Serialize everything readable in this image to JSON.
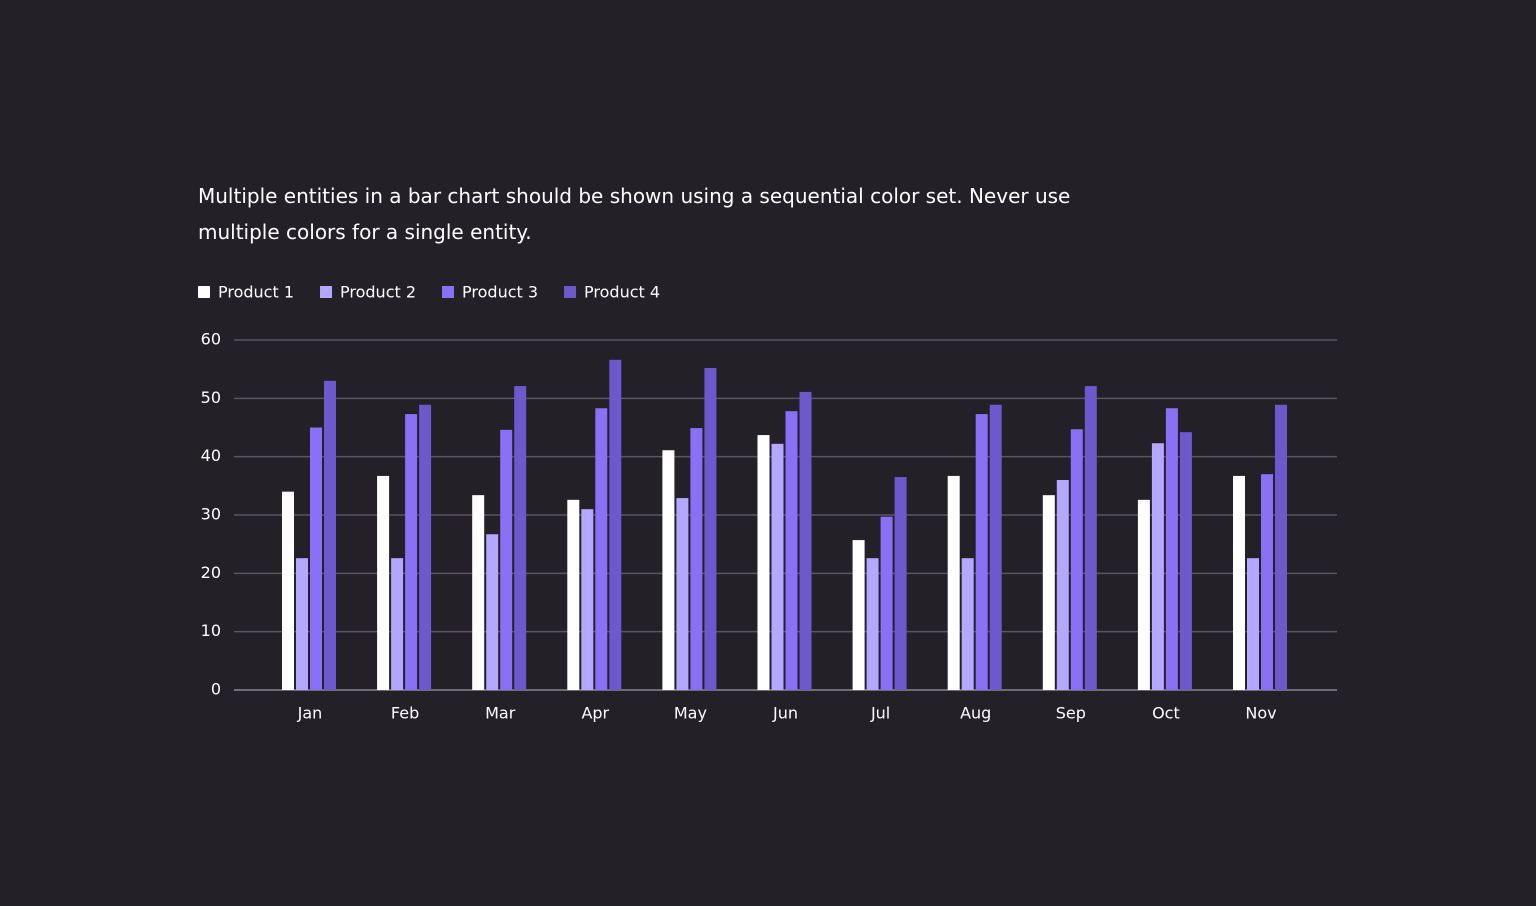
{
  "chart_data": {
    "type": "bar",
    "description": "Multiple entities in a bar chart should be shown using a sequential color set. Never use multiple colors for a single entity.",
    "categories": [
      "Jan",
      "Feb",
      "Mar",
      "Apr",
      "May",
      "Jun",
      "Jul",
      "Aug",
      "Sep",
      "Oct",
      "Nov"
    ],
    "series": [
      {
        "name": "Product 1",
        "color": "#ffffff",
        "values": [
          34,
          36.7,
          33.4,
          32.6,
          41.1,
          43.7,
          25.7,
          36.7,
          33.4,
          32.6,
          36.7
        ]
      },
      {
        "name": "Product 2",
        "color": "#b3a7ff",
        "values": [
          22.6,
          22.6,
          26.7,
          31,
          32.9,
          42.2,
          22.6,
          22.6,
          36,
          42.3,
          22.6
        ]
      },
      {
        "name": "Product 3",
        "color": "#8a70f5",
        "values": [
          45,
          47.3,
          44.6,
          48.3,
          44.9,
          47.8,
          29.7,
          47.3,
          44.7,
          48.3,
          37
        ]
      },
      {
        "name": "Product 4",
        "color": "#6e59cc",
        "values": [
          53,
          48.9,
          52.1,
          56.6,
          55.2,
          51.1,
          36.5,
          48.9,
          52.1,
          44.2,
          48.9
        ]
      }
    ],
    "ylim": [
      0,
      60
    ],
    "yticks": [
      0,
      10,
      20,
      30,
      40,
      50,
      60
    ],
    "grid": true,
    "legend": "top-left"
  }
}
